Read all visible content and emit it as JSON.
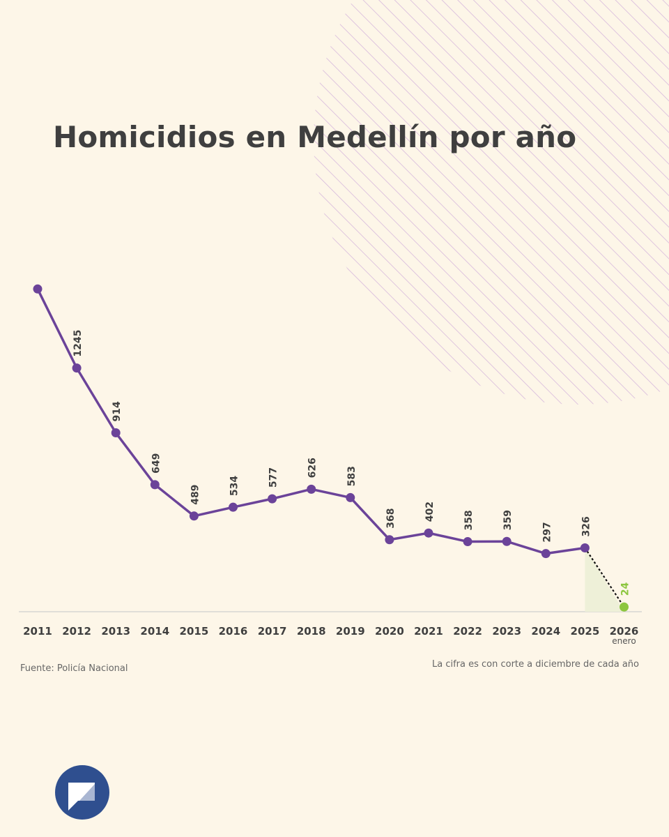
{
  "chart_data": {
    "type": "line",
    "title": "Homicidios en Medellín por año",
    "categories": [
      "2011",
      "2012",
      "2013",
      "2014",
      "2015",
      "2016",
      "2017",
      "2018",
      "2019",
      "2020",
      "2021",
      "2022",
      "2023",
      "2024",
      "2025",
      "2026"
    ],
    "category_sublabels": {
      "2026": "enero"
    },
    "values": [
      1649,
      1245,
      914,
      649,
      489,
      534,
      577,
      626,
      583,
      368,
      402,
      358,
      359,
      297,
      326,
      24
    ],
    "value_labels": [
      null,
      "1245",
      "914",
      "649",
      "489",
      "534",
      "577",
      "626",
      "583",
      "368",
      "402",
      "358",
      "359",
      "297",
      "326",
      "24"
    ],
    "xlabel": "",
    "ylabel": "",
    "ylim": [
      0,
      1700
    ],
    "grid": false,
    "legend": "none",
    "partial_period": {
      "from": "2025",
      "to": "2026",
      "style": "dotted",
      "shaded": true
    }
  },
  "source": "Fuente: Policía Nacional",
  "note": "La cifra es con corte a diciembre de cada año",
  "colors": {
    "background": "#fdf6e8",
    "line": "#6b4399",
    "highlight": "#8dc63f",
    "shade": "#eef0d8",
    "hatch": "#d7b8dc",
    "text": "#3f3f3f",
    "logo": "#2f4f8f"
  },
  "logo_icon": "chat-bubble-logo-icon"
}
